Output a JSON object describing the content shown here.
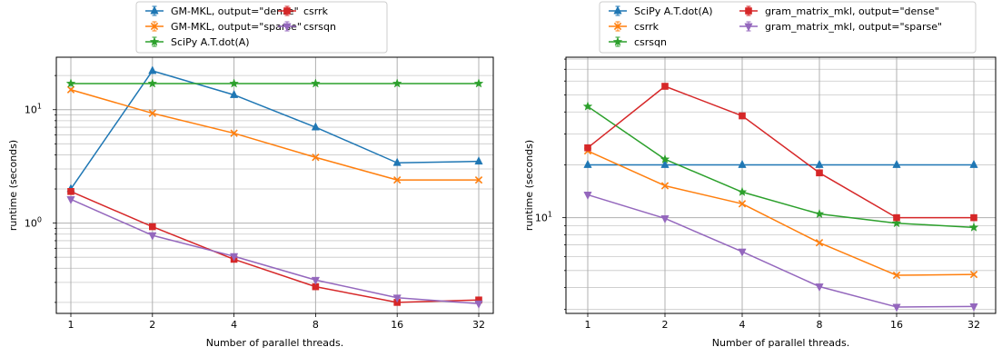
{
  "chart_data": [
    {
      "type": "line",
      "title": "",
      "xlabel": "Number of parallel threads.",
      "ylabel": "runtime (seconds)",
      "xscale": "log2",
      "yscale": "log",
      "x": [
        1,
        2,
        4,
        8,
        16,
        32
      ],
      "x_tick_labels": [
        "1",
        "2",
        "4",
        "8",
        "16",
        "32"
      ],
      "y_tick_labels": [
        {
          "value": 1,
          "base": "10",
          "exp": "0"
        },
        {
          "value": 10,
          "base": "10",
          "exp": "1"
        }
      ],
      "ylim": [
        0.16,
        29
      ],
      "grid": true,
      "legend_placement": "above plot, two columns",
      "series": [
        {
          "name": "GM-MKL, output=\"dense\"",
          "color": "#1f77b4",
          "marker": "triangle-up",
          "values": [
            2.0,
            22.0,
            13.5,
            7.0,
            3.4,
            3.5
          ]
        },
        {
          "name": "GM-MKL, output=\"sparse\"",
          "color": "#ff7f0e",
          "marker": "x",
          "values": [
            15.0,
            9.3,
            6.2,
            3.8,
            2.4,
            2.4
          ]
        },
        {
          "name": "SciPy A.T.dot(A)",
          "color": "#2ca02c",
          "marker": "star",
          "values": [
            17.0,
            17.0,
            17.0,
            17.0,
            17.0,
            17.0
          ]
        },
        {
          "name": "csrrk",
          "color": "#d62728",
          "marker": "square",
          "values": [
            1.9,
            0.93,
            0.48,
            0.275,
            0.2,
            0.21
          ]
        },
        {
          "name": "csrsqn",
          "color": "#9467bd",
          "marker": "triangle-down",
          "values": [
            1.62,
            0.78,
            0.51,
            0.315,
            0.22,
            0.195
          ]
        }
      ]
    },
    {
      "type": "line",
      "title": "",
      "xlabel": "Number of parallel threads.",
      "ylabel": "runtime (seconds)",
      "xscale": "log2",
      "yscale": "log",
      "x": [
        1,
        2,
        4,
        8,
        16,
        32
      ],
      "x_tick_labels": [
        "1",
        "2",
        "4",
        "8",
        "16",
        "32"
      ],
      "y_tick_labels": [
        {
          "value": 10,
          "base": "10",
          "exp": "1"
        }
      ],
      "ylim": [
        2.85,
        82
      ],
      "grid": true,
      "legend_placement": "above plot, two columns",
      "series": [
        {
          "name": "SciPy A.T.dot(A)",
          "color": "#1f77b4",
          "marker": "triangle-up",
          "values": [
            20.0,
            20.0,
            20.0,
            20.0,
            20.0,
            20.0
          ]
        },
        {
          "name": "csrrk",
          "color": "#ff7f0e",
          "marker": "x",
          "values": [
            24.0,
            15.2,
            12.0,
            7.2,
            4.7,
            4.75
          ]
        },
        {
          "name": "csrsqn",
          "color": "#2ca02c",
          "marker": "star",
          "values": [
            43.0,
            21.5,
            14.0,
            10.5,
            9.3,
            8.8
          ]
        },
        {
          "name": "gram_matrix_mkl, output=\"dense\"",
          "color": "#d62728",
          "marker": "square",
          "values": [
            25.0,
            56.0,
            38.0,
            18.0,
            10.0,
            10.0
          ]
        },
        {
          "name": "gram_matrix_mkl, output=\"sparse\"",
          "color": "#9467bd",
          "marker": "triangle-down",
          "values": [
            13.5,
            9.9,
            6.4,
            4.05,
            3.1,
            3.12
          ]
        }
      ]
    }
  ]
}
